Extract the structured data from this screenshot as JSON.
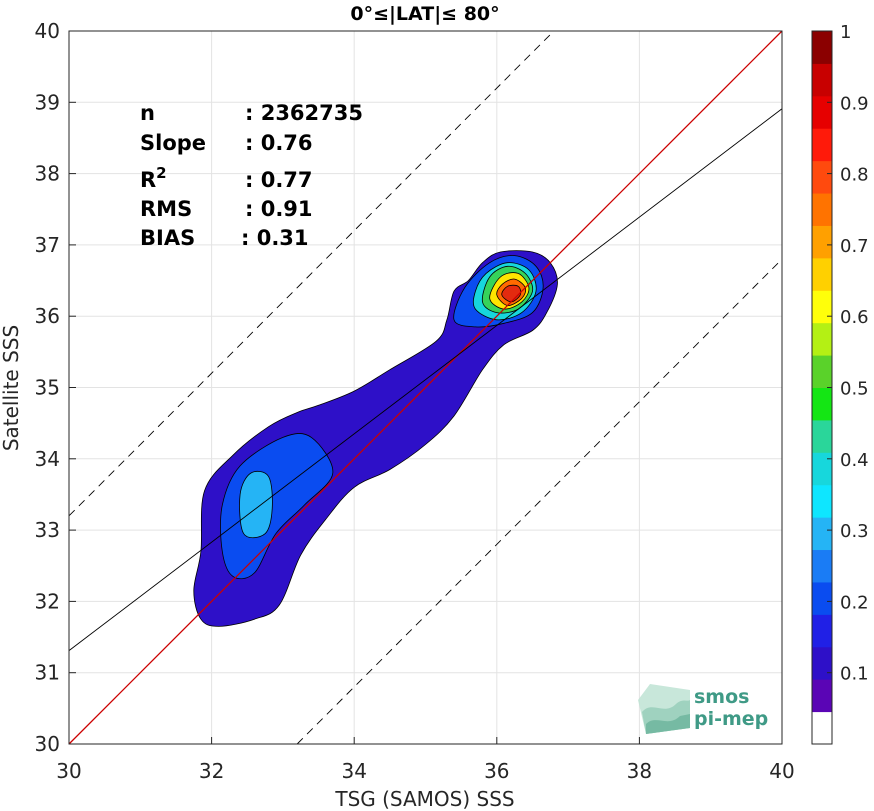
{
  "chart_data": {
    "type": "heatmap",
    "title": "0°≤|LAT|≤ 80°",
    "xlabel": "TSG (SAMOS) SSS",
    "ylabel": "Satellite SSS",
    "xlim": [
      30,
      40
    ],
    "ylim": [
      30,
      40
    ],
    "x_ticks": [
      "30",
      "32",
      "34",
      "36",
      "38",
      "40"
    ],
    "y_ticks": [
      "30",
      "31",
      "32",
      "33",
      "34",
      "35",
      "36",
      "37",
      "38",
      "39",
      "40"
    ],
    "grid": true,
    "stats": [
      {
        "label": "n",
        "value": ": 2362735"
      },
      {
        "label": "Slope",
        "value": ": 0.76"
      },
      {
        "label": "R",
        "sup": "2",
        "value": ": 0.77"
      },
      {
        "label": "RMS",
        "value": ": 0.91"
      },
      {
        "label": "BIAS",
        "value": ": 0.31"
      }
    ],
    "reference_lines": [
      {
        "kind": "one-to-one",
        "color": "#cc0000",
        "slope": 1,
        "intercept": 0
      },
      {
        "kind": "regression",
        "color": "#000000",
        "slope": 0.76,
        "intercept": 8.51
      },
      {
        "kind": "upper-bound",
        "color": "#000000",
        "dashed": true,
        "slope": 1,
        "intercept": 3.2
      },
      {
        "kind": "lower-bound",
        "color": "#000000",
        "dashed": true,
        "slope": 1,
        "intercept": -3.2
      }
    ],
    "density_levels": [
      0.1,
      0.2,
      0.3,
      0.6,
      0.8,
      0.9
    ],
    "density_contours": [
      {
        "level": 0.05,
        "color": "#2e10c8",
        "points": [
          [
            31.85,
            31.75
          ],
          [
            32.1,
            31.65
          ],
          [
            32.6,
            31.75
          ],
          [
            32.95,
            31.95
          ],
          [
            33.25,
            32.65
          ],
          [
            33.6,
            33.15
          ],
          [
            34.0,
            33.6
          ],
          [
            34.5,
            33.85
          ],
          [
            35.0,
            34.2
          ],
          [
            35.4,
            34.6
          ],
          [
            35.8,
            35.25
          ],
          [
            36.1,
            35.6
          ],
          [
            36.5,
            35.8
          ],
          [
            36.7,
            36.05
          ],
          [
            36.85,
            36.45
          ],
          [
            36.75,
            36.75
          ],
          [
            36.5,
            36.9
          ],
          [
            36.05,
            36.9
          ],
          [
            35.8,
            36.75
          ],
          [
            35.6,
            36.5
          ],
          [
            35.4,
            36.35
          ],
          [
            35.3,
            35.95
          ],
          [
            35.15,
            35.65
          ],
          [
            34.5,
            35.25
          ],
          [
            34.0,
            34.95
          ],
          [
            33.5,
            34.75
          ],
          [
            33.2,
            34.65
          ],
          [
            32.8,
            34.45
          ],
          [
            32.3,
            34.05
          ],
          [
            31.9,
            33.55
          ],
          [
            31.85,
            32.7
          ],
          [
            31.75,
            32.15
          ]
        ]
      },
      {
        "level": 0.2,
        "color": "#0a4cf0",
        "points": [
          [
            32.3,
            32.35
          ],
          [
            32.6,
            32.4
          ],
          [
            32.9,
            32.95
          ],
          [
            33.3,
            33.35
          ],
          [
            33.7,
            33.8
          ],
          [
            33.4,
            34.3
          ],
          [
            33.0,
            34.3
          ],
          [
            32.4,
            33.9
          ],
          [
            32.15,
            33.35
          ],
          [
            32.15,
            32.7
          ]
        ]
      },
      {
        "level": 0.2,
        "color": "#0a4cf0",
        "points": [
          [
            35.4,
            35.95
          ],
          [
            35.7,
            35.85
          ],
          [
            36.1,
            35.9
          ],
          [
            36.5,
            36.05
          ],
          [
            36.65,
            36.4
          ],
          [
            36.55,
            36.7
          ],
          [
            36.25,
            36.85
          ],
          [
            35.9,
            36.75
          ],
          [
            35.55,
            36.4
          ]
        ]
      },
      {
        "level": 0.3,
        "color": "#25b4f5",
        "points": [
          [
            32.45,
            32.95
          ],
          [
            32.75,
            32.95
          ],
          [
            32.85,
            33.3
          ],
          [
            32.8,
            33.75
          ],
          [
            32.55,
            33.8
          ],
          [
            32.4,
            33.5
          ]
        ]
      },
      {
        "level": 0.3,
        "color": "#17d7dc",
        "points": [
          [
            35.7,
            36.1
          ],
          [
            36.0,
            35.95
          ],
          [
            36.35,
            36.05
          ],
          [
            36.55,
            36.35
          ],
          [
            36.45,
            36.65
          ],
          [
            36.15,
            36.75
          ],
          [
            35.85,
            36.6
          ],
          [
            35.7,
            36.35
          ]
        ]
      },
      {
        "level": 0.6,
        "color": "#36d35a",
        "points": [
          [
            35.8,
            36.2
          ],
          [
            36.0,
            36.05
          ],
          [
            36.3,
            36.1
          ],
          [
            36.5,
            36.35
          ],
          [
            36.4,
            36.6
          ],
          [
            36.15,
            36.7
          ],
          [
            35.9,
            36.55
          ]
        ]
      },
      {
        "level": 0.7,
        "color": "#ffe400",
        "points": [
          [
            35.9,
            36.25
          ],
          [
            36.1,
            36.1
          ],
          [
            36.35,
            36.2
          ],
          [
            36.45,
            36.4
          ],
          [
            36.3,
            36.6
          ],
          [
            36.05,
            36.55
          ]
        ]
      },
      {
        "level": 0.8,
        "color": "#ff6a00",
        "points": [
          [
            36.0,
            36.3
          ],
          [
            36.15,
            36.15
          ],
          [
            36.35,
            36.25
          ],
          [
            36.4,
            36.4
          ],
          [
            36.25,
            36.52
          ],
          [
            36.08,
            36.45
          ]
        ]
      },
      {
        "level": 0.9,
        "color": "#e32a0f",
        "points": [
          [
            36.07,
            36.3
          ],
          [
            36.2,
            36.2
          ],
          [
            36.33,
            36.3
          ],
          [
            36.3,
            36.42
          ],
          [
            36.15,
            36.42
          ]
        ]
      }
    ],
    "colorbar": {
      "ticks": [
        "0.1",
        "0.2",
        "0.3",
        "0.4",
        "0.5",
        "0.6",
        "0.7",
        "0.8",
        "0.9",
        "1"
      ],
      "colors": [
        "#ffffff",
        "#5a05b5",
        "#2e10c8",
        "#2020e6",
        "#0a4cf0",
        "#1a7cf5",
        "#25b4f5",
        "#0ee6ff",
        "#17d7dc",
        "#2ad69a",
        "#14e614",
        "#5ad22a",
        "#b4f014",
        "#ffff0a",
        "#ffd000",
        "#ffa000",
        "#ff7300",
        "#ff4a0e",
        "#ff1a0a",
        "#e60000",
        "#c80000",
        "#8b0000"
      ]
    },
    "logo": {
      "line1": "smos",
      "line2": "pi-mep"
    }
  }
}
